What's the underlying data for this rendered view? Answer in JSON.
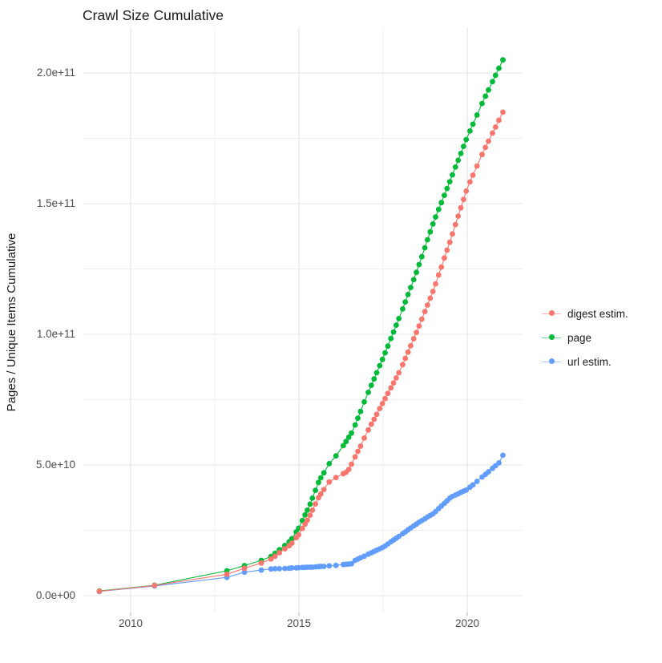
{
  "title": "Crawl Size Cumulative",
  "axes": {
    "y_label": "Pages / Unique Items Cumulative",
    "y_ticks": [
      {
        "label": "0.0e+00",
        "value_billions": 0
      },
      {
        "label": "5.0e+10",
        "value_billions": 50
      },
      {
        "label": "1.0e+11",
        "value_billions": 100
      },
      {
        "label": "1.5e+11",
        "value_billions": 150
      },
      {
        "label": "2.0e+11",
        "value_billions": 200
      }
    ],
    "y_minor_billions": [
      25,
      75,
      125,
      175
    ],
    "x_ticks": [
      {
        "label": "2010",
        "value": 2010
      },
      {
        "label": "2015",
        "value": 2015
      },
      {
        "label": "2020",
        "value": 2020
      }
    ],
    "x_minor": [
      2012.5,
      2017.5
    ]
  },
  "legend": [
    {
      "label": "digest estim.",
      "color": "#F8766D"
    },
    {
      "label": "page",
      "color": "#00BA38"
    },
    {
      "label": "url estim.",
      "color": "#619CFF"
    }
  ],
  "colors": {
    "digest": "#F8766D",
    "page": "#00BA38",
    "url": "#619CFF",
    "grid_major": "#E4E4E4",
    "grid_minor": "#F0F0F0",
    "tick_mark": "#BFBFBF"
  },
  "chart_data": {
    "type": "line",
    "title": "Crawl Size Cumulative",
    "xlabel": "",
    "ylabel": "Pages / Unique Items Cumulative",
    "x_unit": "year (decimal, one point per crawl)",
    "y_unit": "cumulative count",
    "value_unit_multiplier": 1000000000,
    "x_range_shown": [
      2008.5,
      2021.7
    ],
    "ylim_shown": [
      0,
      216000000000
    ],
    "grid": true,
    "legend_position": "right",
    "x": [
      2009.07,
      2010.71,
      2012.86,
      2013.38,
      2013.88,
      2014.17,
      2014.29,
      2014.42,
      2014.58,
      2014.71,
      2014.79,
      2014.92,
      2014.99,
      2015.1,
      2015.18,
      2015.25,
      2015.33,
      2015.4,
      2015.49,
      2015.58,
      2015.65,
      2015.74,
      2015.9,
      2016.1,
      2016.32,
      2016.4,
      2016.48,
      2016.56,
      2016.67,
      2016.75,
      2016.83,
      2016.94,
      2017.06,
      2017.15,
      2017.23,
      2017.31,
      2017.4,
      2017.48,
      2017.56,
      2017.64,
      2017.73,
      2017.81,
      2017.89,
      2017.97,
      2018.08,
      2018.16,
      2018.24,
      2018.32,
      2018.41,
      2018.49,
      2018.57,
      2018.65,
      2018.74,
      2018.82,
      2018.9,
      2018.98,
      2019.06,
      2019.15,
      2019.23,
      2019.32,
      2019.4,
      2019.48,
      2019.56,
      2019.65,
      2019.73,
      2019.81,
      2019.89,
      2019.97,
      2020.08,
      2020.17,
      2020.29,
      2020.44,
      2020.54,
      2020.63,
      2020.75,
      2020.84,
      2020.94,
      2021.06
    ],
    "series": [
      {
        "name": "digest estim.",
        "color": "#F8766D",
        "values_billions": [
          1.7,
          3.9,
          8.2,
          10.5,
          12.5,
          14.0,
          15.1,
          16.4,
          17.9,
          19.1,
          20.1,
          22.2,
          23.3,
          25.7,
          27.4,
          28.9,
          30.8,
          32.7,
          35.1,
          37.5,
          38.9,
          40.6,
          43.5,
          45.2,
          46.7,
          47.2,
          48.3,
          50.3,
          53.1,
          55.2,
          57.2,
          60.3,
          63.4,
          65.6,
          67.5,
          69.4,
          71.6,
          73.5,
          75.4,
          77.4,
          79.5,
          81.4,
          83.3,
          85.3,
          88.4,
          90.8,
          93.2,
          95.6,
          98.3,
          100.7,
          103.2,
          105.8,
          108.7,
          111.2,
          113.8,
          116.4,
          119.3,
          122.7,
          125.7,
          129.2,
          132.2,
          135.2,
          138.4,
          142.0,
          145.2,
          148.4,
          151.6,
          154.8,
          158.3,
          160.9,
          164.4,
          168.8,
          171.5,
          173.9,
          177.0,
          179.3,
          181.9,
          185.0
        ]
      },
      {
        "name": "page",
        "color": "#00BA38",
        "values_billions": [
          1.8,
          4.0,
          9.5,
          11.5,
          13.5,
          15.0,
          16.2,
          17.6,
          19.2,
          20.6,
          21.8,
          24.4,
          25.8,
          28.7,
          30.9,
          32.7,
          35.0,
          37.3,
          40.3,
          43.3,
          45.1,
          47.0,
          50.5,
          53.5,
          57.4,
          59.0,
          60.6,
          62.2,
          65.3,
          67.9,
          70.5,
          74.1,
          77.8,
          80.5,
          82.9,
          85.3,
          88.0,
          90.4,
          92.9,
          95.5,
          98.4,
          100.9,
          103.5,
          106.0,
          109.7,
          112.4,
          115.2,
          117.9,
          120.9,
          123.7,
          126.7,
          129.7,
          133.1,
          136.2,
          139.2,
          142.2,
          144.9,
          147.8,
          150.4,
          153.2,
          155.8,
          158.4,
          161.0,
          164.0,
          166.6,
          169.2,
          171.9,
          174.5,
          177.8,
          180.4,
          183.9,
          188.3,
          191.1,
          193.5,
          196.7,
          199.1,
          201.8,
          205.0
        ]
      },
      {
        "name": "url estim.",
        "color": "#619CFF",
        "values_billions": [
          1.6,
          3.7,
          7.0,
          9.0,
          9.8,
          10.2,
          10.3,
          10.3,
          10.4,
          10.5,
          10.6,
          10.6,
          10.7,
          10.8,
          10.8,
          10.9,
          10.9,
          10.9,
          11.0,
          11.1,
          11.2,
          11.2,
          11.4,
          11.6,
          11.9,
          12.0,
          12.1,
          12.2,
          13.5,
          14.0,
          14.5,
          15.1,
          15.9,
          16.4,
          16.9,
          17.4,
          17.9,
          18.4,
          19.0,
          19.8,
          20.6,
          21.3,
          22.0,
          22.7,
          23.7,
          24.4,
          25.2,
          25.9,
          26.7,
          27.4,
          28.1,
          28.7,
          29.4,
          30.1,
          30.7,
          31.3,
          32.2,
          33.3,
          34.3,
          35.3,
          36.3,
          37.3,
          38.0,
          38.5,
          39.0,
          39.5,
          40.0,
          40.4,
          41.5,
          42.4,
          43.7,
          45.4,
          46.4,
          47.4,
          48.7,
          49.7,
          50.8,
          53.7
        ]
      }
    ]
  }
}
